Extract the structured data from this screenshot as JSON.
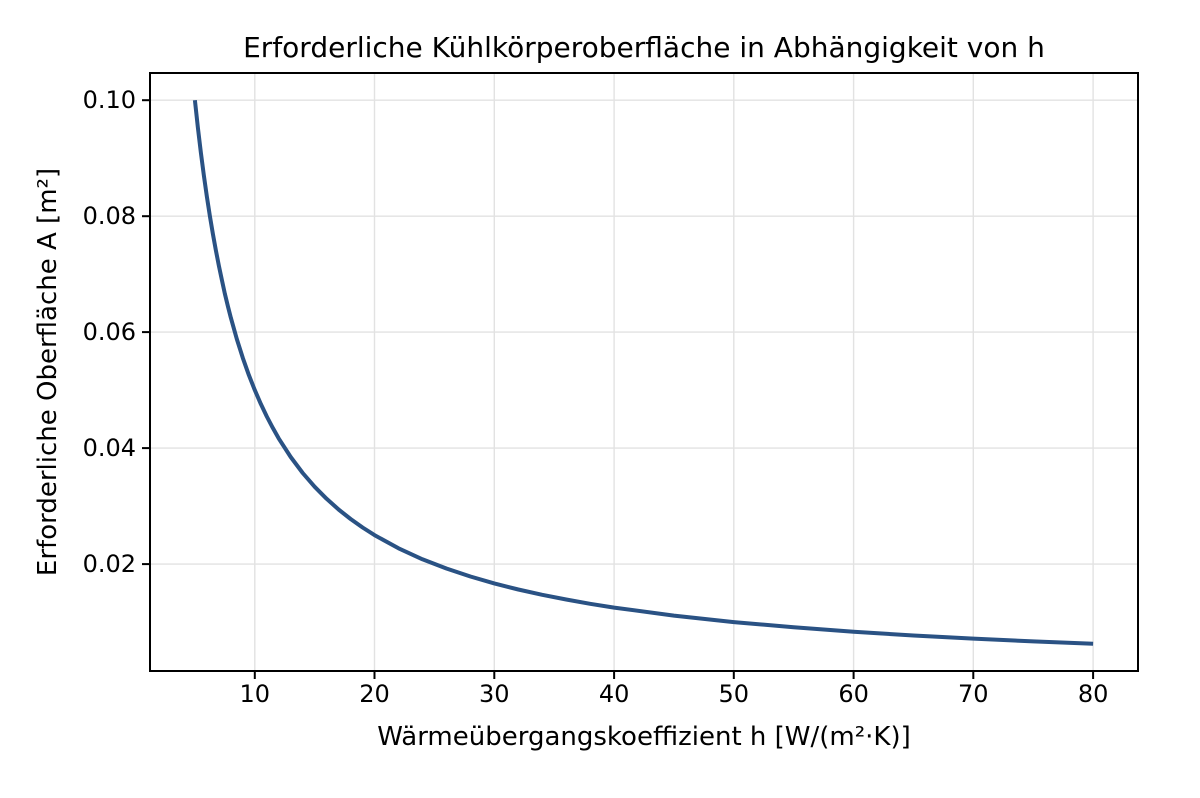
{
  "chart_data": {
    "type": "line",
    "title": "Erforderliche Kühlkörperoberfläche in Abhängigkeit von h",
    "xlabel": "Wärmeübergangskoeffizient h [W/(m²·K)]",
    "ylabel": "Erforderliche Oberfläche A [m²]",
    "xlim": [
      1.25,
      83.75
    ],
    "ylim": [
      0.0015625,
      0.1046875
    ],
    "xticks": [
      10,
      20,
      30,
      40,
      50,
      60,
      70,
      80
    ],
    "xtick_labels": [
      "10",
      "20",
      "30",
      "40",
      "50",
      "60",
      "70",
      "80"
    ],
    "yticks": [
      0.02,
      0.04,
      0.06,
      0.08,
      0.1
    ],
    "ytick_labels": [
      "0.02",
      "0.04",
      "0.06",
      "0.08",
      "0.10"
    ],
    "grid": true,
    "legend": false,
    "line_width": 4,
    "colors": {
      "line": "#2a5284",
      "grid": "#e2e2e2",
      "spine": "#000000",
      "tick": "#000000",
      "text": "#000000",
      "background": "#ffffff"
    },
    "series": [
      {
        "x": [
          5,
          5.25,
          5.5,
          5.75,
          6,
          6.25,
          6.5,
          6.75,
          7,
          7.25,
          7.5,
          7.75,
          8,
          8.5,
          9,
          9.5,
          10,
          10.5,
          11,
          11.5,
          12,
          13,
          14,
          15,
          16,
          17,
          18,
          19,
          20,
          22,
          24,
          26,
          28,
          30,
          32,
          34,
          36,
          38,
          40,
          45,
          50,
          55,
          60,
          65,
          70,
          75,
          80
        ],
        "y": [
          0.1,
          0.095238,
          0.090909,
          0.086957,
          0.083333,
          0.08,
          0.076923,
          0.074074,
          0.071429,
          0.068966,
          0.066667,
          0.064516,
          0.0625,
          0.058824,
          0.055556,
          0.052632,
          0.05,
          0.047619,
          0.045455,
          0.043478,
          0.041667,
          0.038462,
          0.035714,
          0.033333,
          0.03125,
          0.029412,
          0.027778,
          0.026316,
          0.025,
          0.022727,
          0.020833,
          0.019231,
          0.017857,
          0.016667,
          0.015625,
          0.014706,
          0.013889,
          0.013158,
          0.0125,
          0.011111,
          0.01,
          0.009091,
          0.008333,
          0.007692,
          0.007143,
          0.006667,
          0.00625
        ]
      }
    ]
  }
}
